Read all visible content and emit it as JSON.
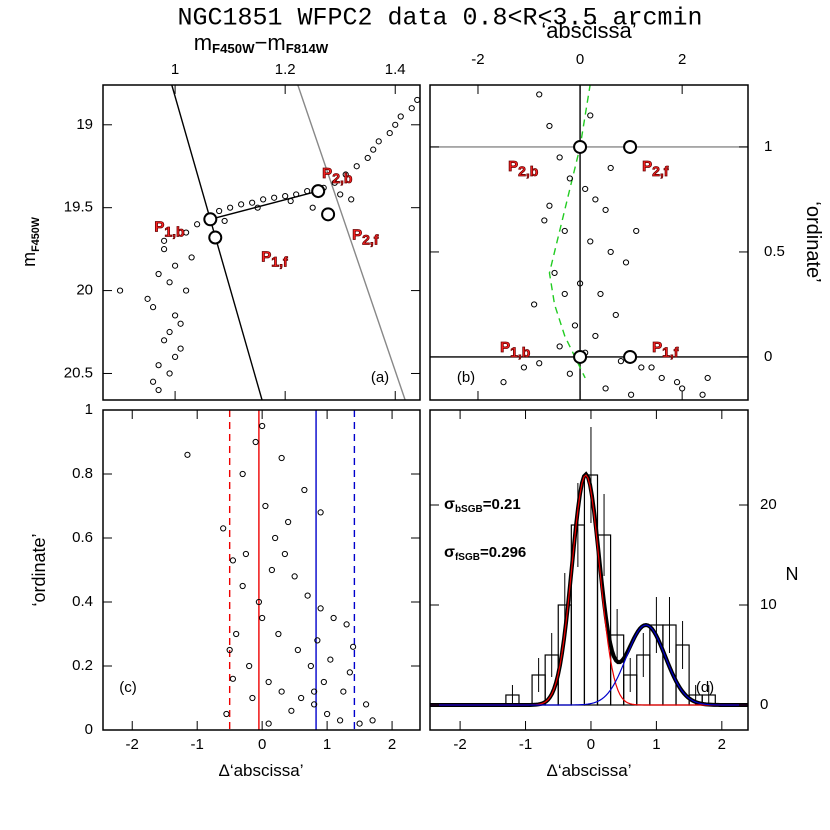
{
  "title": "NGC1851 WFPC2 data 0.8<R<3.5 arcmin",
  "chart_data": [
    {
      "type": "scatter",
      "panel_label": "(a)",
      "x_label": [
        [
          "m",
          "F450W"
        ],
        [
          "−m",
          "F814W"
        ]
      ],
      "y_label": [
        [
          "m",
          "F450W"
        ]
      ],
      "xaxis_position": "top",
      "yaxis_position": "left",
      "xlim": [
        0.869,
        1.445
      ],
      "ylim": [
        20.66,
        18.76
      ],
      "xticks": [
        1,
        1.2,
        1.4
      ],
      "yticks": [
        19,
        19.5,
        20,
        20.5
      ],
      "x": [
        0.97,
        0.99,
        1.0,
        0.98,
        1.01,
        0.96,
        1.02,
        0.99,
        0.97,
        1.0,
        1.03,
        0.98,
        0.96,
        1.01,
        0.99,
        1.0,
        0.95,
        0.98,
        1.02,
        0.97,
        1.04,
        1.06,
        1.08,
        1.1,
        1.12,
        1.14,
        1.16,
        1.18,
        1.2,
        1.22,
        1.24,
        1.27,
        1.29,
        1.31,
        1.33,
        1.35,
        1.37,
        1.39,
        1.41,
        1.43,
        1.09,
        1.15,
        1.21,
        1.3,
        1.36,
        0.9,
        1.25,
        1.32,
        1.4,
        1.44
      ],
      "y": [
        20.6,
        20.5,
        20.4,
        20.3,
        20.2,
        20.1,
        20.0,
        19.95,
        19.9,
        19.85,
        19.8,
        19.75,
        20.55,
        20.35,
        20.25,
        20.15,
        20.05,
        19.7,
        19.65,
        20.45,
        19.6,
        19.55,
        19.52,
        19.5,
        19.48,
        19.47,
        19.45,
        19.44,
        19.43,
        19.42,
        19.4,
        19.38,
        19.35,
        19.3,
        19.25,
        19.2,
        19.1,
        19.05,
        18.95,
        18.9,
        19.58,
        19.5,
        19.46,
        19.42,
        19.15,
        20.0,
        19.5,
        19.45,
        19.0,
        18.85
      ],
      "color": "#000",
      "lines": [
        {
          "x": [
            0.994,
            1.158
          ],
          "y": [
            18.76,
            20.66
          ],
          "color": "#000"
        },
        {
          "x": [
            1.223,
            1.418
          ],
          "y": [
            18.76,
            20.66
          ],
          "color": "#888"
        },
        {
          "x": [
            1.064,
            1.26
          ],
          "y": [
            19.57,
            19.4
          ],
          "color": "#000"
        }
      ],
      "highlights": {
        "x": [
          1.064,
          1.073,
          1.26,
          1.278
        ],
        "y": [
          19.57,
          19.68,
          19.4,
          19.54
        ],
        "labels": [
          {
            "text": "P",
            "sub": "1,b"
          },
          {
            "text": "P",
            "sub": "1,f"
          },
          {
            "text": "P",
            "sub": "2,b"
          },
          {
            "text": "P",
            "sub": "2,f"
          }
        ]
      }
    },
    {
      "type": "scatter",
      "panel_label": "(b)",
      "x_label": [
        [
          "‘abscissa’",
          ""
        ]
      ],
      "y_label": [
        [
          "‘ordinate’",
          ""
        ]
      ],
      "xaxis_position": "top",
      "yaxis_position": "right",
      "xlim": [
        -2.94,
        3.29
      ],
      "ylim": [
        -0.205,
        1.295
      ],
      "xticks": [
        -2,
        0,
        2
      ],
      "yticks": [
        0,
        0.5,
        1
      ],
      "x": [
        -0.8,
        -0.6,
        -0.4,
        -0.2,
        0.1,
        0.3,
        0.5,
        -0.7,
        -0.3,
        0.2,
        0.6,
        0.9,
        -0.5,
        0.0,
        0.4,
        -0.9,
        0.7,
        -0.1,
        0.3,
        -0.4,
        1.2,
        1.6,
        2.0,
        2.5,
        -1.1,
        -1.5,
        0.8,
        -0.2,
        0.5,
        1.0,
        1.4,
        1.9,
        2.4,
        -0.6,
        0.2,
        -0.3,
        0.6,
        0.1,
        -0.8,
        1.1
      ],
      "y": [
        1.25,
        1.1,
        0.95,
        0.85,
        0.8,
        0.75,
        0.7,
        0.65,
        0.6,
        0.55,
        0.5,
        0.45,
        0.4,
        0.35,
        0.3,
        0.25,
        0.2,
        0.15,
        0.1,
        0.05,
        -0.05,
        -0.1,
        -0.15,
        -0.1,
        -0.05,
        -0.12,
        -0.02,
        -0.08,
        -0.15,
        -0.18,
        -0.05,
        -0.12,
        -0.18,
        0.72,
        1.15,
        0.3,
        0.9,
        0.02,
        -0.03,
        0.6
      ],
      "color": "#000",
      "lines": [
        {
          "y": 1,
          "color": "#888"
        },
        {
          "y": 0,
          "color": "#000"
        },
        {
          "x": 0,
          "color": "#000"
        },
        {
          "x": [
            0.2,
            0.1,
            0,
            -0.1,
            -0.2,
            -0.3,
            -0.4,
            -0.5,
            -0.6,
            -0.5,
            -0.3,
            -0.1,
            0.1
          ],
          "y": [
            1.3,
            1.15,
            1.0,
            0.9,
            0.8,
            0.7,
            0.6,
            0.5,
            0.4,
            0.25,
            0.1,
            0.0,
            -0.1
          ],
          "color": "#2c2",
          "dash": true
        }
      ],
      "highlights": {
        "x": [
          0,
          0.98,
          0,
          0.98
        ],
        "y": [
          0,
          0,
          1,
          1
        ],
        "labels": [
          {
            "text": "P",
            "sub": "1,b"
          },
          {
            "text": "P",
            "sub": "1,f"
          },
          {
            "text": "P",
            "sub": "2,b"
          },
          {
            "text": "P",
            "sub": "2,f"
          }
        ]
      }
    },
    {
      "type": "scatter",
      "panel_label": "(c)",
      "x_label": [
        [
          "Δ‘abscissa’",
          ""
        ]
      ],
      "y_label": [
        [
          "‘ordinate’",
          ""
        ]
      ],
      "xaxis_position": "bottom",
      "yaxis_position": "left",
      "xlim": [
        -2.45,
        2.43
      ],
      "ylim": [
        0,
        1
      ],
      "xticks": [
        -2,
        -1,
        0,
        1,
        2
      ],
      "yticks": [
        0,
        0.2,
        0.4,
        0.6,
        0.8,
        1
      ],
      "x": [
        -1.15,
        -0.6,
        -0.45,
        -0.3,
        -0.1,
        0.0,
        0.05,
        0.2,
        0.35,
        0.5,
        0.7,
        0.9,
        1.1,
        1.3,
        -0.5,
        -0.2,
        0.1,
        0.3,
        0.6,
        0.8,
        1.0,
        1.2,
        1.5,
        -0.4,
        -0.05,
        0.15,
        0.4,
        0.65,
        0.85,
        1.05,
        1.35,
        -0.3,
        0.0,
        0.25,
        0.55,
        0.75,
        0.95,
        1.25,
        1.6,
        1.7,
        -0.55,
        -0.15,
        0.1,
        0.45,
        0.8,
        1.4,
        -0.25,
        0.3,
        0.9,
        -0.45
      ],
      "y": [
        0.86,
        0.63,
        0.53,
        0.45,
        0.9,
        0.95,
        0.7,
        0.6,
        0.55,
        0.48,
        0.42,
        0.38,
        0.35,
        0.33,
        0.25,
        0.2,
        0.15,
        0.12,
        0.1,
        0.08,
        0.05,
        0.03,
        0.02,
        0.3,
        0.4,
        0.5,
        0.65,
        0.75,
        0.28,
        0.22,
        0.18,
        0.8,
        0.35,
        0.3,
        0.25,
        0.2,
        0.15,
        0.12,
        0.08,
        0.03,
        0.05,
        0.1,
        0.02,
        0.06,
        0.12,
        0.26,
        0.55,
        0.85,
        0.68,
        0.16
      ],
      "color": "#000",
      "lines": [
        {
          "x": -0.5,
          "color": "#e00",
          "dash": true
        },
        {
          "x": -0.05,
          "color": "#e00"
        },
        {
          "x": 0.83,
          "color": "#00c"
        },
        {
          "x": 1.42,
          "color": "#00c",
          "dash": true
        }
      ]
    },
    {
      "type": "histogram",
      "panel_label": "(d)",
      "x_label": [
        [
          "Δ‘abscissa’",
          ""
        ]
      ],
      "y_label": [
        [
          "N",
          ""
        ]
      ],
      "xaxis_position": "bottom",
      "yaxis_position": "right",
      "xlim": [
        -2.46,
        2.4
      ],
      "ylim": [
        -2.5,
        29.5
      ],
      "xticks": [
        -2,
        -1,
        0,
        1,
        2
      ],
      "yticks": [
        0,
        10,
        20
      ],
      "bins": [
        -1.3,
        -1.1,
        -0.9,
        -0.7,
        -0.5,
        -0.3,
        -0.1,
        0.1,
        0.3,
        0.5,
        0.7,
        0.9,
        1.1,
        1.3,
        1.5,
        1.7,
        1.9
      ],
      "counts": [
        1,
        0,
        3,
        5,
        10,
        18,
        23,
        17,
        7,
        3,
        5,
        8,
        8,
        6,
        1,
        1
      ],
      "errors": [
        1,
        0,
        1.7,
        2.2,
        3.2,
        4.2,
        4.8,
        4.1,
        2.6,
        1.7,
        2.2,
        2.8,
        2.8,
        2.4,
        1,
        1
      ],
      "color": "#000",
      "fits": [
        {
          "center": -0.08,
          "sigma": 0.21,
          "amplitude": 23,
          "color": "#e00"
        },
        {
          "center": 0.84,
          "sigma": 0.296,
          "amplitude": 8,
          "color": "#00c"
        }
      ],
      "fit_sum_color": "#000",
      "notes": [
        {
          "text": "σ",
          "sub": "bSGB",
          "rest": "=0.21"
        },
        {
          "text": "σ",
          "sub": "fSGB",
          "rest": "=0.296"
        }
      ]
    }
  ]
}
